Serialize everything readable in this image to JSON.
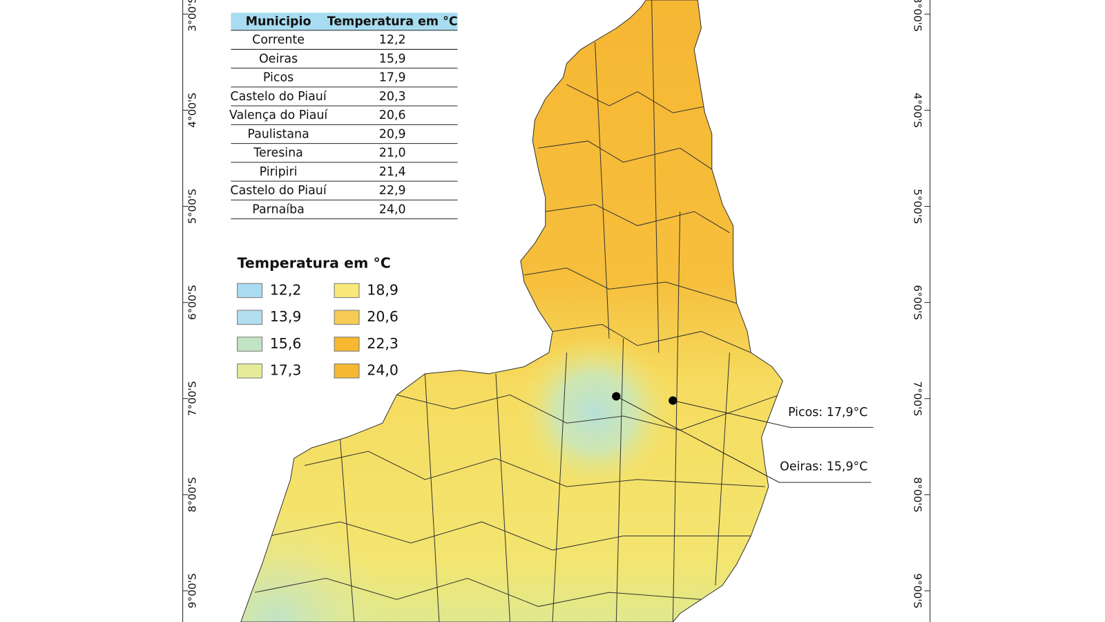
{
  "table": {
    "header": [
      "Municipio",
      "Temperatura em °C"
    ],
    "rows": [
      [
        "Corrente",
        "12,2"
      ],
      [
        "Oeiras",
        "15,9"
      ],
      [
        "Picos",
        "17,9"
      ],
      [
        "Castelo do Piauí",
        "20,3"
      ],
      [
        "Valença do Piauí",
        "20,6"
      ],
      [
        "Paulistana",
        "20,9"
      ],
      [
        "Teresina",
        "21,0"
      ],
      [
        "Piripiri",
        "21,4"
      ],
      [
        "Castelo do Piauí",
        "22,9"
      ],
      [
        "Parnaíba",
        "24,0"
      ]
    ]
  },
  "legend": {
    "title": "Temperatura em °C",
    "items": [
      "12,2",
      "13,9",
      "15,6",
      "17,3",
      "18,9",
      "20,6",
      "22,3",
      "24,0"
    ]
  },
  "axis": {
    "left": [
      "3°00'S",
      "4°00'S",
      "5°00'S",
      "6°00'S",
      "7°00'S",
      "8°00'S",
      "9°00'S"
    ],
    "right": [
      "3°00'S",
      "4°00'S",
      "5°00'S",
      "6°00'S",
      "7°00'S",
      "8°00'S",
      "9°00'S"
    ]
  },
  "annotations": [
    "Picos: 17,9°C",
    "Oeiras: 15,9°C"
  ]
}
